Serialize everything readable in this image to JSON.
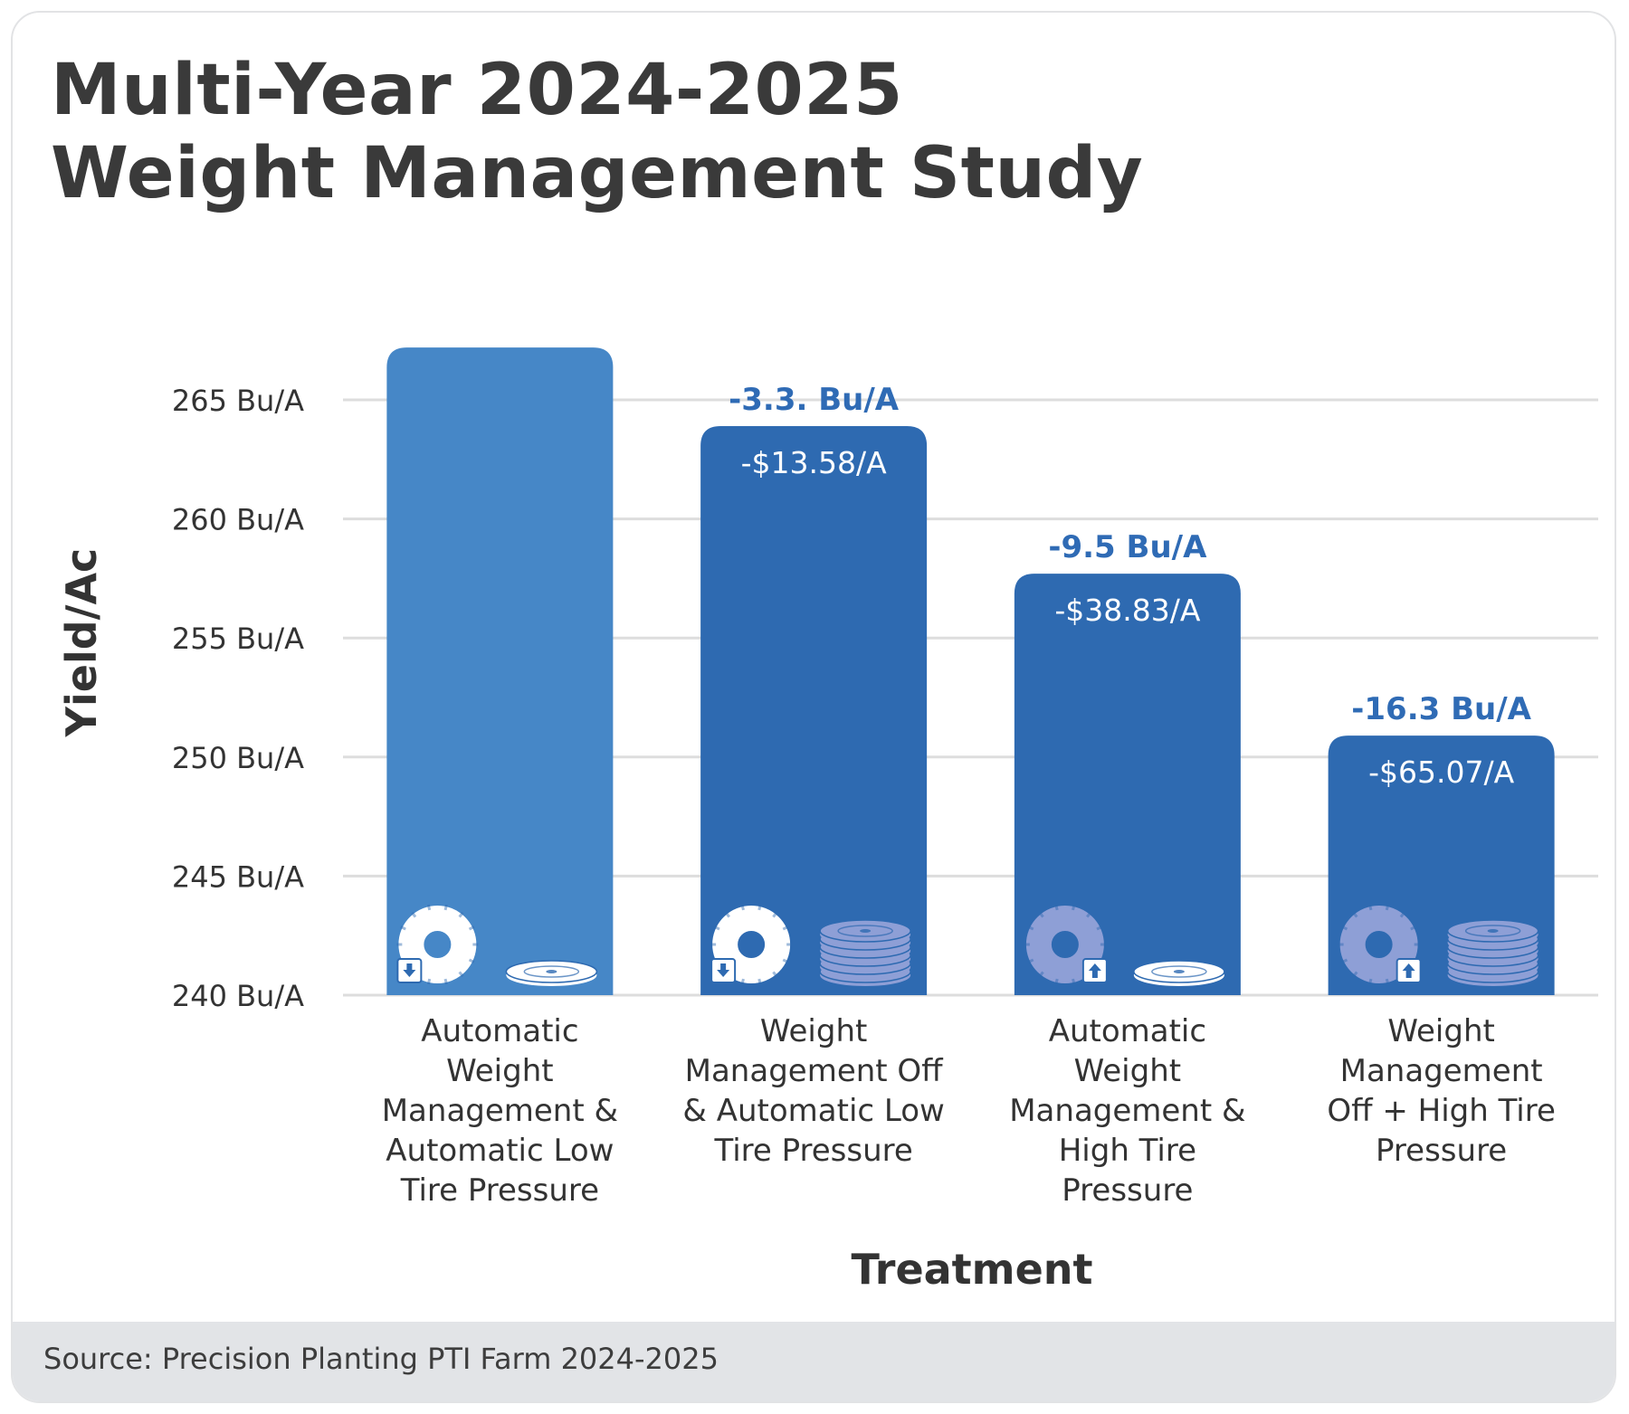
{
  "title": {
    "line1": "Multi-Year 2024-2025",
    "line2": "Weight Management Study"
  },
  "source": "Source: Precision Planting PTI Farm 2024-2025",
  "colors": {
    "bar_first": "#4687c7",
    "bar_rest": "#2e6ab1",
    "grid": "#dddddd",
    "annotation": "#2f6bb5",
    "icon_white": "#ffffff",
    "icon_muted": "#8e9fd6"
  },
  "chart_data": {
    "type": "bar",
    "title": "Multi-Year 2024-2025 Weight Management Study",
    "xlabel": "Treatment",
    "ylabel": "Yield/Ac",
    "ylim": [
      240,
      265
    ],
    "yticks": [
      240,
      245,
      250,
      255,
      260,
      265
    ],
    "ytick_labels": [
      "240 Bu/A",
      "245 Bu/A",
      "250 Bu/A",
      "255 Bu/A",
      "260 Bu/A",
      "265 Bu/A"
    ],
    "grid": true,
    "categories": [
      [
        "Automatic Weight",
        "Management &",
        "Automatic Low",
        "Tire Pressure"
      ],
      [
        "Weight",
        "Management Off",
        "& Automatic Low",
        "Tire Pressure"
      ],
      [
        "Automatic Weight",
        "Management &",
        "High Tire Pressure"
      ],
      [
        "Weight",
        "Management",
        "Off + High Tire",
        "Pressure"
      ]
    ],
    "values": [
      267.2,
      263.9,
      257.7,
      250.9
    ],
    "annotations": [
      "",
      "-3.3. Bu/A",
      "-9.5 Bu/A",
      "-16.3 Bu/A"
    ],
    "cost_labels": [
      "",
      "-$13.58/A",
      "-$38.83/A",
      "-$65.07/A"
    ],
    "icons": [
      {
        "tire": "tire-low-pressure-icon",
        "tire_style": "white",
        "weights": "weight-plate-single-icon",
        "weights_style": "white"
      },
      {
        "tire": "tire-low-pressure-icon",
        "tire_style": "white",
        "weights": "weight-stack-icon",
        "weights_style": "muted"
      },
      {
        "tire": "tire-high-pressure-icon",
        "tire_style": "muted",
        "weights": "weight-plate-single-icon",
        "weights_style": "white"
      },
      {
        "tire": "tire-high-pressure-icon",
        "tire_style": "muted",
        "weights": "weight-stack-icon",
        "weights_style": "muted"
      }
    ]
  }
}
